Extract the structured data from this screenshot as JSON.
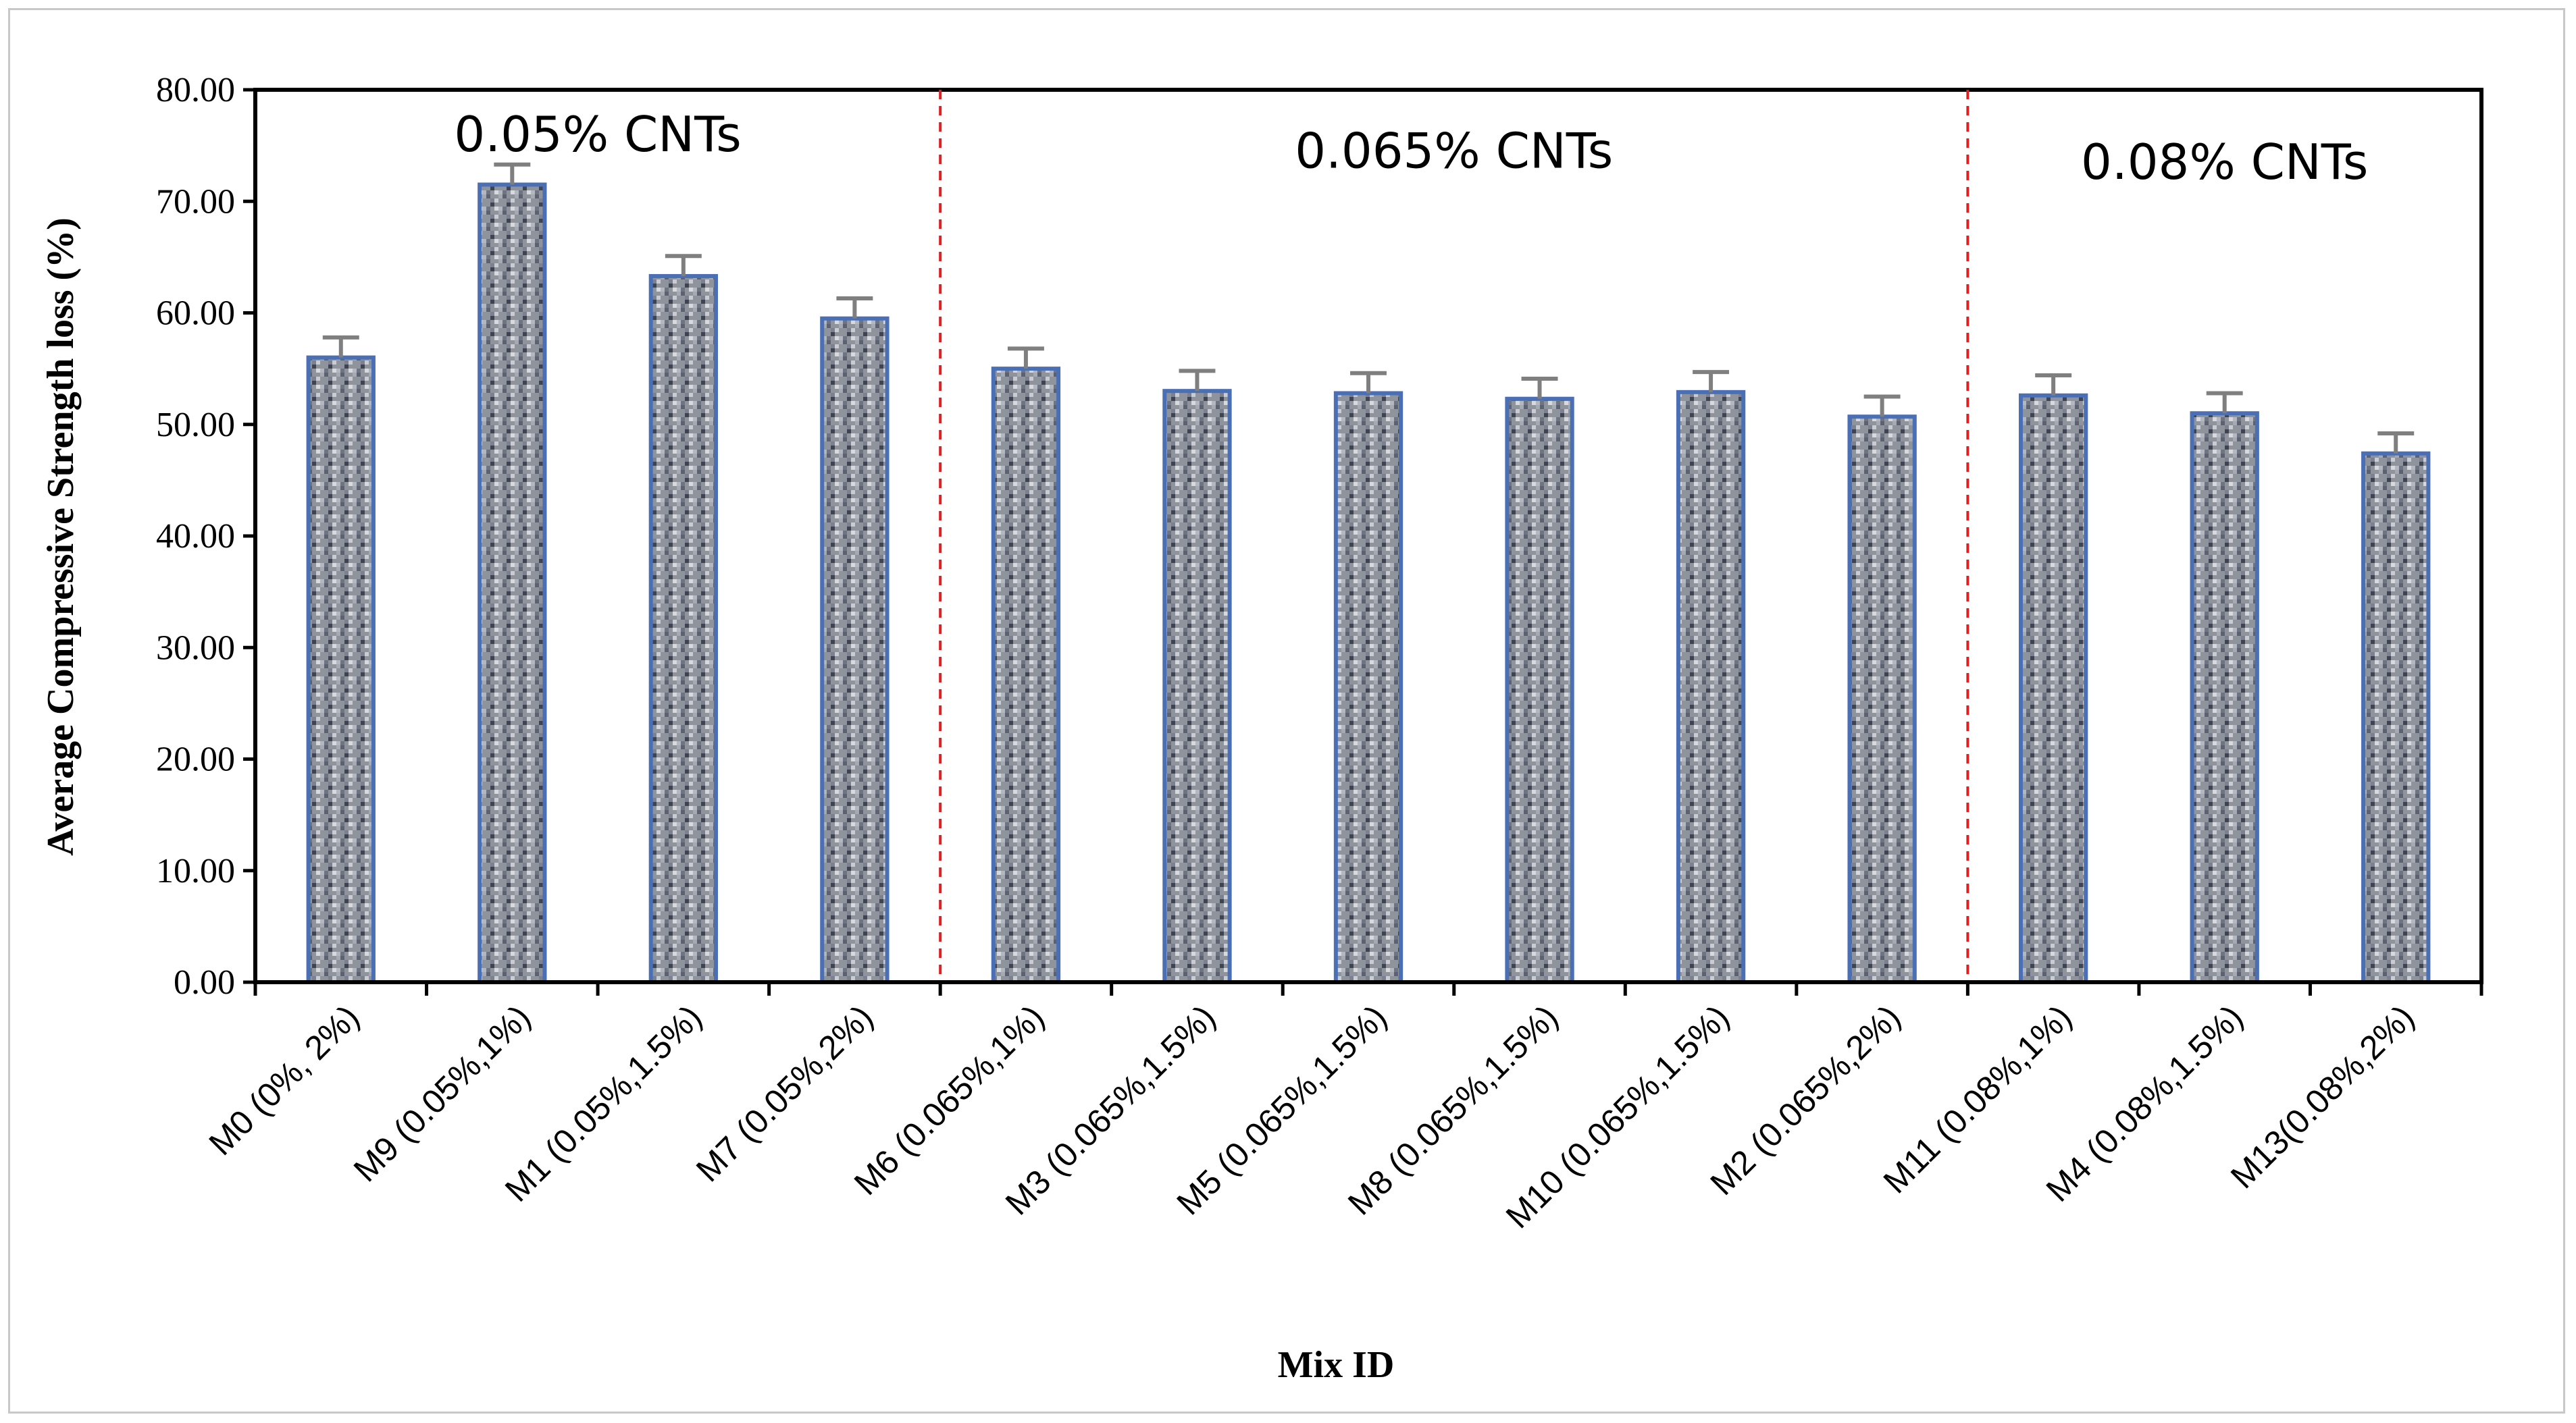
{
  "chart_data": {
    "type": "bar",
    "title": "",
    "xlabel": "Mix ID",
    "ylabel": "Average Compressive Strength loss (%)",
    "ylim": [
      0,
      80
    ],
    "yticks": [
      "0.00",
      "10.00",
      "20.00",
      "30.00",
      "40.00",
      "50.00",
      "60.00",
      "70.00",
      "80.00"
    ],
    "categories": [
      "M0 (0%, 2%)",
      "M9 (0.05%,1%)",
      "M1 (0.05%,1.5%)",
      "M7 (0.05%,2%)",
      "M6 (0.065%,1%)",
      "M3 (0.065%,1.5%)",
      "M5 (0.065%,1.5%)",
      "M8 (0.065%,1.5%)",
      "M10 (0.065%,1.5%)",
      "M2 (0.065%,2%)",
      "M11 (0.08%,1%)",
      "M4 (0.08%,1.5%)",
      "M13(0.08%,2%)"
    ],
    "values": [
      56.0,
      71.5,
      63.3,
      59.5,
      55.0,
      53.0,
      52.8,
      52.3,
      52.9,
      50.7,
      52.6,
      51.0,
      47.4
    ],
    "errors": [
      1.8,
      1.8,
      1.8,
      1.8,
      1.8,
      1.8,
      1.8,
      1.8,
      1.8,
      1.8,
      1.8,
      1.8,
      1.8
    ],
    "dividers": [
      {
        "after_index": 3,
        "color": "#e02020",
        "style": "dashed"
      },
      {
        "after_index": 9,
        "color": "#e02020",
        "style": "dashed"
      }
    ],
    "regions": [
      {
        "label": "0.05% CNTs"
      },
      {
        "label": "0.065% CNTs"
      },
      {
        "label": "0.08% CNTs"
      }
    ],
    "colors": {
      "bar_fill": "#8a8f99",
      "bar_edge": "#4a6fb5",
      "error_bar": "#7f7f7f",
      "axis": "#000000"
    },
    "grid": false,
    "legend": "none"
  }
}
